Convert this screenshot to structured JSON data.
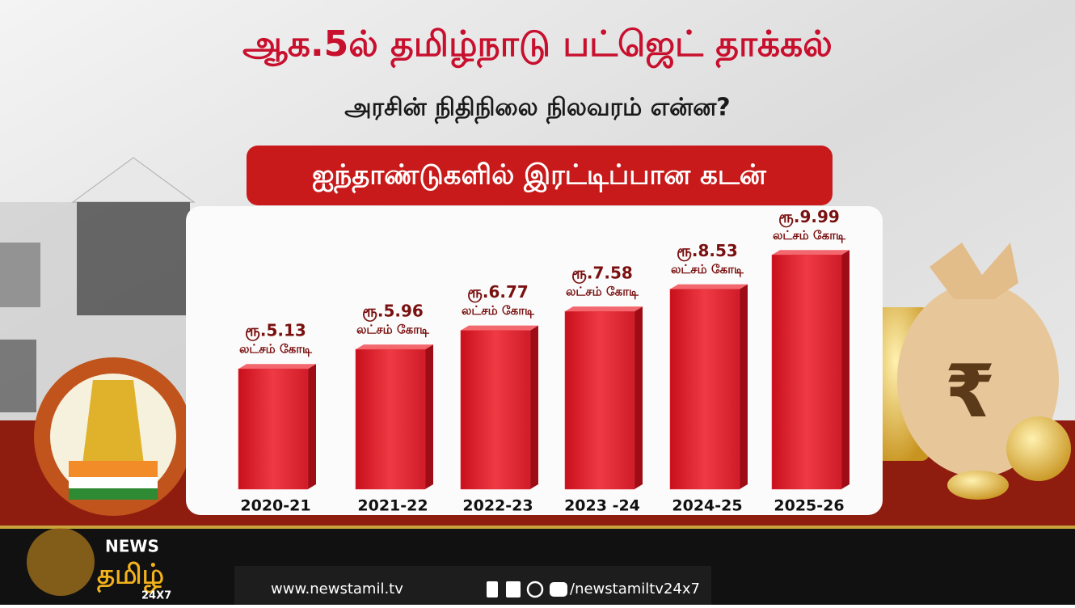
{
  "header": {
    "headline": "ஆக.5ல் தமிழ்நாடு பட்ஜெட் தாக்கல்",
    "subheadline": "அரசின் நிதிநிலை நிலவரம் என்ன?"
  },
  "chart_data": {
    "type": "bar",
    "title": "ஐந்தாண்டுகளில் இரட்டிப்பான கடன்",
    "categories": [
      "2020-21",
      "2021-22",
      "2022-23",
      "2023 -24",
      "2024-25",
      "2025-26"
    ],
    "values": [
      5.13,
      5.96,
      6.77,
      7.58,
      8.53,
      9.99
    ],
    "value_labels": [
      "ரூ.5.13",
      "ரூ.5.96",
      "ரூ.6.77",
      "ரூ.7.58",
      "ரூ.8.53",
      "ரூ.9.99"
    ],
    "unit_label": "லட்சம் கோடி",
    "color": "#e32b36"
  },
  "footer": {
    "logo_top": "NEWS",
    "logo_main": "தமிழ்",
    "logo_sub": "24X7",
    "website": "www.newstamil.tv",
    "social_handle": "/newstamiltv24x7"
  }
}
